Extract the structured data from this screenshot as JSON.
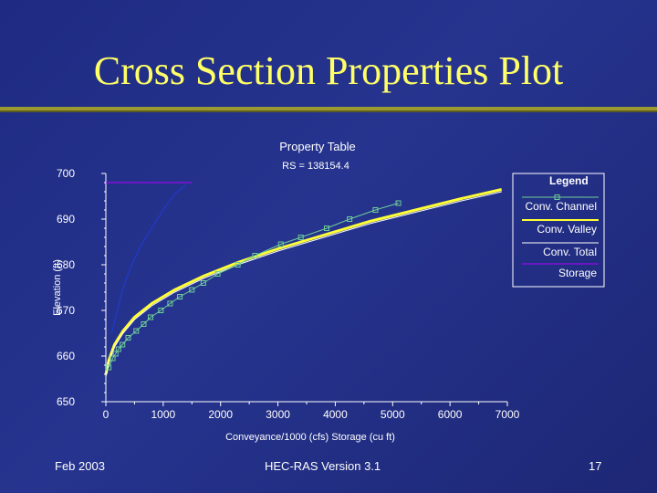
{
  "slide": {
    "title": "Cross Section Properties Plot",
    "footer_left": "Feb 2003",
    "footer_center": "HEC-RAS Version 3.1",
    "footer_right": "17"
  },
  "colors": {
    "title": "#ffff66",
    "accent_line": "#9a9a30",
    "background": "#232f88",
    "conv_channel": "#6fcf97",
    "conv_valley": "#ffff33",
    "conv_total": "#ffffff",
    "storage": "#b000ff",
    "blue_curve": "#1f3bd8"
  },
  "chart_data": {
    "type": "line",
    "title": "Property Table",
    "subtitle": "RS = 138154.4",
    "xlabel": "Conveyance/1000 (cfs)  Storage (cu ft)",
    "ylabel": "Elevation (ft)",
    "xlim": [
      0,
      7000
    ],
    "ylim": [
      650,
      700
    ],
    "x_ticks": [
      0,
      1000,
      2000,
      3000,
      4000,
      5000,
      6000,
      7000
    ],
    "y_ticks": [
      650,
      660,
      670,
      680,
      690,
      700
    ],
    "legend_title": "Legend",
    "legend_position": "right",
    "series": [
      {
        "name": "Conv. Channel",
        "marker": "square",
        "x": [
          50,
          120,
          170,
          220,
          290,
          390,
          530,
          660,
          780,
          960,
          1120,
          1290,
          1500,
          1700,
          1950,
          2300,
          2600,
          3050,
          3400,
          3850,
          4250,
          4700,
          5100
        ],
        "y": [
          657.5,
          659.5,
          660.5,
          661.5,
          662.5,
          664,
          665.5,
          667,
          668.5,
          670,
          671.5,
          673,
          674.5,
          676,
          678,
          680,
          682,
          684.5,
          686,
          688,
          690,
          692,
          693.5
        ]
      },
      {
        "name": "Conv. Valley",
        "x": [
          0,
          50,
          150,
          300,
          500,
          800,
          1200,
          1700,
          2300,
          3000,
          3800,
          4600,
          5400,
          6200,
          6900
        ],
        "y": [
          656,
          659,
          662.5,
          665.5,
          668.5,
          671.5,
          674.5,
          677.5,
          680.5,
          683.5,
          686.5,
          689.5,
          692,
          694.5,
          696.5
        ]
      },
      {
        "name": "Conv. Total",
        "x": [
          0,
          50,
          150,
          300,
          500,
          800,
          1200,
          1700,
          2300,
          3000,
          3800,
          4600,
          5400,
          6200,
          6900
        ],
        "y": [
          655.5,
          658.5,
          662,
          665,
          668,
          671,
          674,
          677,
          680,
          683,
          686,
          689,
          691.5,
          694,
          696
        ]
      },
      {
        "name": "Storage",
        "x": [
          0,
          200,
          400,
          600,
          800,
          1000,
          1200,
          1500
        ],
        "y": [
          698,
          698,
          698,
          698,
          698,
          698,
          698,
          698
        ]
      },
      {
        "name": "",
        "x": [
          100,
          200,
          300,
          450,
          600,
          800,
          1000,
          1200,
          1400
        ],
        "y": [
          665,
          670,
          675,
          680,
          684,
          688,
          692,
          695.5,
          697.5
        ]
      }
    ]
  }
}
